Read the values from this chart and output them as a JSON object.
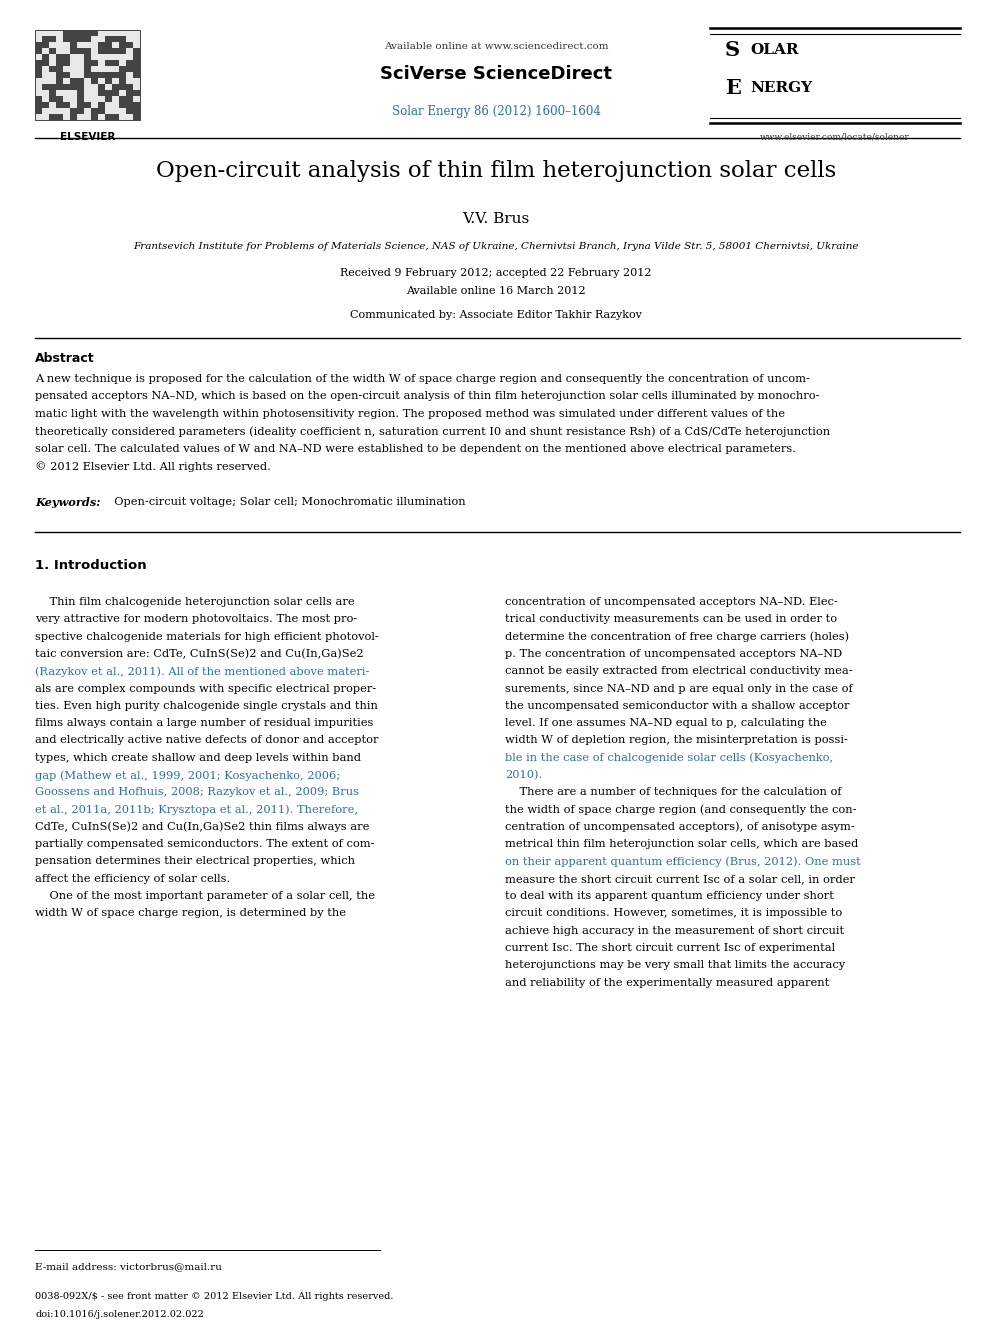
{
  "background_color": "#ffffff",
  "page_width": 9.92,
  "page_height": 13.23,
  "header": {
    "available_online": "Available online at www.sciencedirect.com",
    "sciverse": "SciVerse ScienceDirect",
    "journal_ref": "Solar Energy 86 (2012) 1600–1604",
    "website": "www.elsevier.com/locate/solener",
    "journal_ref_color": "#2e6fa3"
  },
  "title": "Open-circuit analysis of thin film heterojunction solar cells",
  "author": "V.V. Brus",
  "affiliation": "Frantsevich Institute for Problems of Materials Science, NAS of Ukraine, Chernivtsi Branch, Iryna Vilde Str. 5, 58001 Chernivtsi, Ukraine",
  "dates_line1": "Received 9 February 2012; accepted 22 February 2012",
  "dates_line2": "Available online 16 March 2012",
  "communicated": "Communicated by: Associate Editor Takhir Razykov",
  "abstract_label": "Abstract",
  "abstract_text_lines": [
    "A new technique is proposed for the calculation of the width W of space charge region and consequently the concentration of uncom-",
    "pensated acceptors NA–ND, which is based on the open-circuit analysis of thin film heterojunction solar cells illuminated by monochro-",
    "matic light with the wavelength within photosensitivity region. The proposed method was simulated under different values of the",
    "theoretically considered parameters (ideality coefficient n, saturation current I0 and shunt resistance Rsh) of a CdS/CdTe heterojunction",
    "solar cell. The calculated values of W and NA–ND were established to be dependent on the mentioned above electrical parameters.",
    "© 2012 Elsevier Ltd. All rights reserved."
  ],
  "keywords_label": "Keywords:",
  "keywords_text": "  Open-circuit voltage; Solar cell; Monochromatic illumination",
  "section1_title": "1. Introduction",
  "col1_lines": [
    "    Thin film chalcogenide heterojunction solar cells are",
    "very attractive for modern photovoltaics. The most pro-",
    "spective chalcogenide materials for high efficient photovol-",
    "taic conversion are: CdTe, CuInS(Se)2 and Cu(In,Ga)Se2",
    "(Razykov et al., 2011). All of the mentioned above materi-",
    "als are complex compounds with specific electrical proper-",
    "ties. Even high purity chalcogenide single crystals and thin",
    "films always contain a large number of residual impurities",
    "and electrically active native defects of donor and acceptor",
    "types, which create shallow and deep levels within band",
    "gap (Mathew et al., 1999, 2001; Kosyachenko, 2006;",
    "Goossens and Hofhuis, 2008; Razykov et al., 2009; Brus",
    "et al., 2011a, 2011b; Krysztopa et al., 2011). Therefore,",
    "CdTe, CuInS(Se)2 and Cu(In,Ga)Se2 thin films always are",
    "partially compensated semiconductors. The extent of com-",
    "pensation determines their electrical properties, which",
    "affect the efficiency of solar cells.",
    "    One of the most important parameter of a solar cell, the",
    "width W of space charge region, is determined by the"
  ],
  "col1_line_colors": [
    "black",
    "black",
    "black",
    "black",
    "#2e6fa3",
    "black",
    "black",
    "black",
    "black",
    "black",
    "#2e6fa3",
    "#2e6fa3",
    "#2e6fa3",
    "black",
    "black",
    "black",
    "black",
    "black",
    "black"
  ],
  "col2_lines": [
    "concentration of uncompensated acceptors NA–ND. Elec-",
    "trical conductivity measurements can be used in order to",
    "determine the concentration of free charge carriers (holes)",
    "p. The concentration of uncompensated acceptors NA–ND",
    "cannot be easily extracted from electrical conductivity mea-",
    "surements, since NA–ND and p are equal only in the case of",
    "the uncompensated semiconductor with a shallow acceptor",
    "level. If one assumes NA–ND equal to p, calculating the",
    "width W of depletion region, the misinterpretation is possi-",
    "ble in the case of chalcogenide solar cells (Kosyachenko,",
    "2010).",
    "    There are a number of techniques for the calculation of",
    "the width of space charge region (and consequently the con-",
    "centration of uncompensated acceptors), of anisotype asym-",
    "metrical thin film heterojunction solar cells, which are based",
    "on their apparent quantum efficiency (Brus, 2012). One must",
    "measure the short circuit current Isc of a solar cell, in order",
    "to deal with its apparent quantum efficiency under short",
    "circuit conditions. However, sometimes, it is impossible to",
    "achieve high accuracy in the measurement of short circuit",
    "current Isc. The short circuit current Isc of experimental",
    "heterojunctions may be very small that limits the accuracy",
    "and reliability of the experimentally measured apparent"
  ],
  "col2_line_colors": [
    "black",
    "black",
    "black",
    "black",
    "black",
    "black",
    "black",
    "black",
    "black",
    "#2e6fa3",
    "#2e6fa3",
    "black",
    "black",
    "black",
    "black",
    "#2e6fa3",
    "black",
    "black",
    "black",
    "black",
    "black",
    "black",
    "black"
  ],
  "footnote": "E-mail address: victorbrus@mail.ru",
  "copyright_line": "0038-092X/$ - see front matter © 2012 Elsevier Ltd. All rights reserved.",
  "doi_line": "doi:10.1016/j.solener.2012.02.022",
  "text_color": "#000000",
  "link_color": "#2e6fa3"
}
